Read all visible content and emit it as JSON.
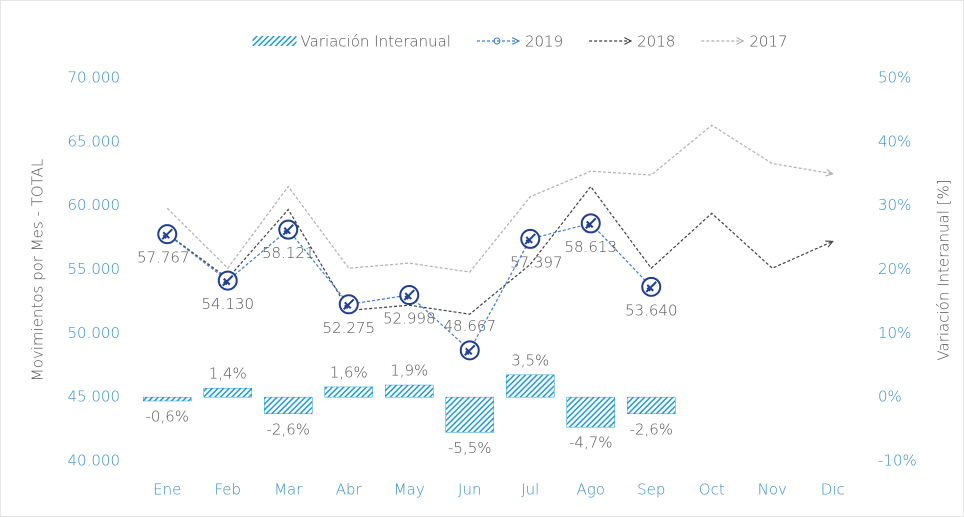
{
  "chart_data": {
    "type": "combo",
    "legend_position": "top",
    "y_label": "Movimientos por Mes - TOTAL",
    "y2_label": "Variación Interanual [%]",
    "categories": [
      "Ene",
      "Feb",
      "Mar",
      "Abr",
      "May",
      "Jun",
      "Jul",
      "Ago",
      "Sep",
      "Oct",
      "Nov",
      "Dic"
    ],
    "series": [
      {
        "name": "Variación Interanual",
        "type": "bar",
        "axis": "y2",
        "color": "#1f9bd7",
        "values": [
          -0.6,
          1.4,
          -2.6,
          1.6,
          1.9,
          -5.5,
          3.5,
          -4.7,
          -2.6,
          null,
          null,
          null
        ],
        "value_labels": [
          "-0,6%",
          "1,4%",
          "-2,6%",
          "1,6%",
          "1,9%",
          "-5,5%",
          "3,5%",
          "-4,7%",
          "-2,6%",
          null,
          null,
          null
        ]
      },
      {
        "name": "2019",
        "type": "line",
        "color": "#3b7dd8",
        "marker": true,
        "values": [
          57767,
          54130,
          58121,
          52275,
          52998,
          48667,
          57397,
          58613,
          53640,
          null,
          null,
          null
        ],
        "value_labels": [
          "57.767",
          "54.130",
          "58.121",
          "52.275",
          "52.998",
          "48.667",
          "57.397",
          "58.613",
          "53.640",
          null,
          null,
          null
        ]
      },
      {
        "name": "2018",
        "type": "line",
        "color": "#404040",
        "values": [
          57800,
          54300,
          59700,
          51800,
          52200,
          51500,
          55400,
          61500,
          55100,
          59400,
          55100,
          57200
        ]
      },
      {
        "name": "2017",
        "type": "line",
        "color": "#b0b0b0",
        "values": [
          59800,
          55100,
          61500,
          55100,
          55500,
          54800,
          60700,
          62700,
          62400,
          66300,
          63300,
          62500
        ]
      }
    ],
    "ylim": [
      40000,
      70000
    ],
    "yticks": [
      {
        "value": 40000,
        "label": "40.000"
      },
      {
        "value": 45000,
        "label": "45.000"
      },
      {
        "value": 50000,
        "label": "50.000"
      },
      {
        "value": 55000,
        "label": "55.000"
      },
      {
        "value": 60000,
        "label": "60.000"
      },
      {
        "value": 65000,
        "label": "65.000"
      },
      {
        "value": 70000,
        "label": "70.000"
      }
    ],
    "y2lim": [
      -10,
      50
    ],
    "y2ticks": [
      {
        "value": -10,
        "label": "-10%"
      },
      {
        "value": 0,
        "label": "0%"
      },
      {
        "value": 10,
        "label": "10%"
      },
      {
        "value": 20,
        "label": "20%"
      },
      {
        "value": 30,
        "label": "30%"
      },
      {
        "value": 40,
        "label": "40%"
      },
      {
        "value": 50,
        "label": "50%"
      }
    ]
  }
}
